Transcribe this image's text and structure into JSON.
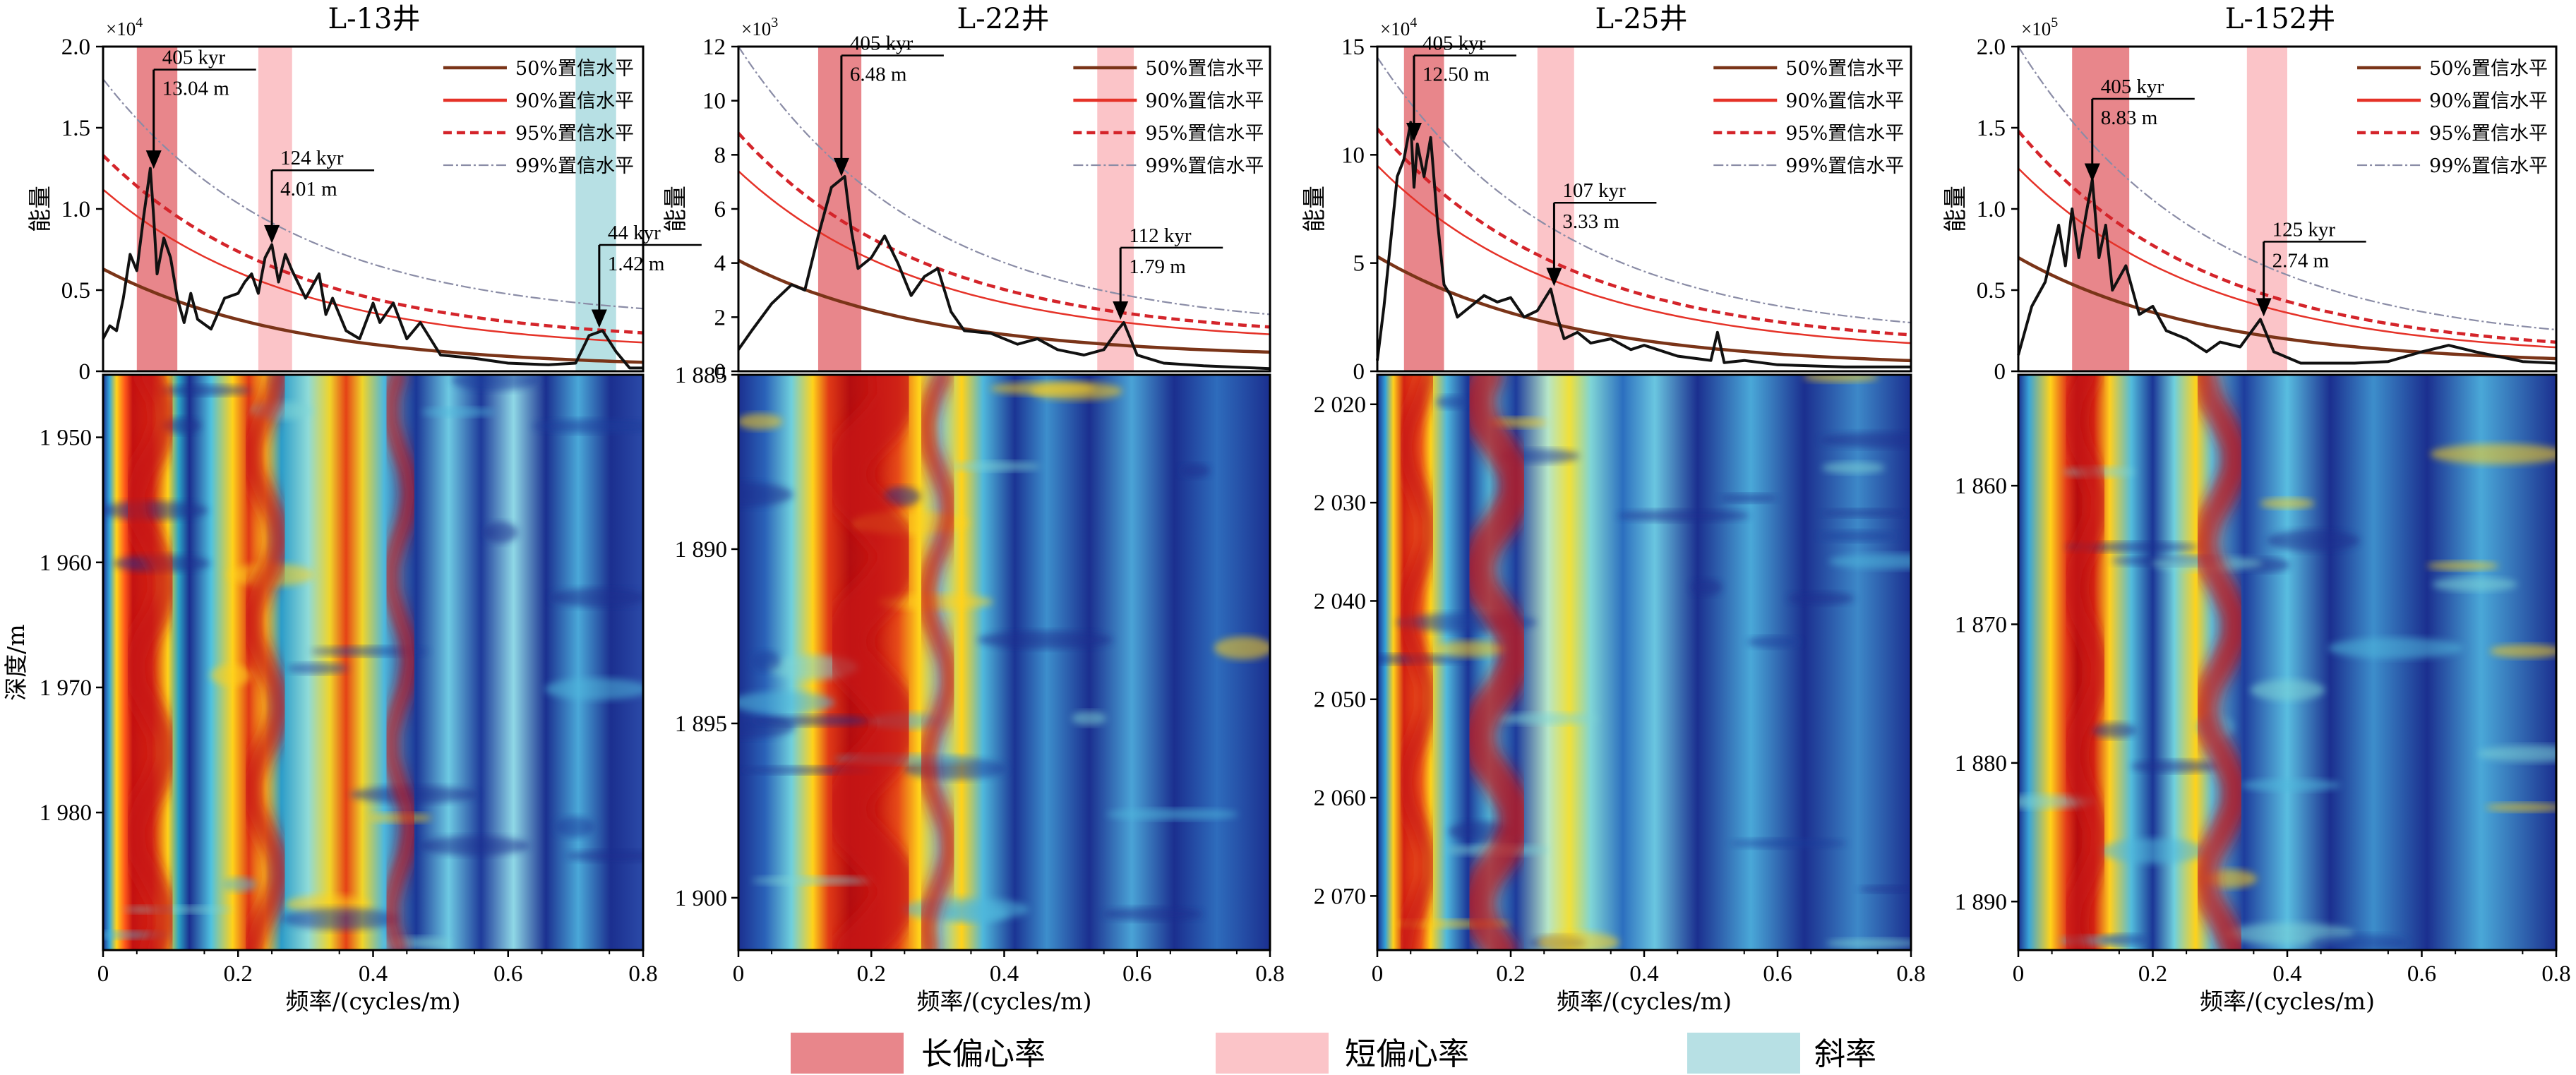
{
  "colors": {
    "long_ecc": "#e8868b",
    "short_ecc": "#fbc4c8",
    "obliquity": "#b7e0e4",
    "c50": "#7a3418",
    "c90": "#e53228",
    "c95": "#d4242a",
    "c99": "#8a8ca6",
    "curve": "#111111"
  },
  "legend_bottom": [
    {
      "label": "长偏心率",
      "color": "#e8868b"
    },
    {
      "label": "短偏心率",
      "color": "#fbc4c8"
    },
    {
      "label": "斜率",
      "color": "#b7e0e4"
    }
  ],
  "chart_data": [
    {
      "type": "spectrum+evolutive_spectrum",
      "title": "L-13井",
      "spectrum": {
        "multiplier": "×10",
        "exponent": "4",
        "ylim": [
          0,
          2.0
        ],
        "yticks": [
          0,
          0.5,
          1.0,
          1.5,
          2.0
        ],
        "ytick_labels": [
          "0",
          "0.5",
          "1.0",
          "1.5",
          "2.0"
        ],
        "ylabel": "能量",
        "bands": [
          {
            "kind": "long_ecc",
            "x": [
              0.05,
              0.11
            ]
          },
          {
            "kind": "short_ecc",
            "x": [
              0.23,
              0.28
            ]
          },
          {
            "kind": "obliquity",
            "x": [
              0.7,
              0.76
            ]
          }
        ],
        "legend": [
          "50%置信水平",
          "90%置信水平",
          "95%置信水平",
          "99%置信水平"
        ],
        "conf": {
          "c50": [
            0.63,
            0.02
          ],
          "c90": [
            1.12,
            0.12
          ],
          "c95": [
            1.33,
            0.17
          ],
          "c99": [
            1.8,
            0.3
          ]
        },
        "curve": [
          [
            0,
            0.2
          ],
          [
            0.01,
            0.28
          ],
          [
            0.02,
            0.25
          ],
          [
            0.03,
            0.45
          ],
          [
            0.04,
            0.72
          ],
          [
            0.05,
            0.62
          ],
          [
            0.06,
            0.95
          ],
          [
            0.07,
            1.25
          ],
          [
            0.075,
            0.95
          ],
          [
            0.08,
            0.6
          ],
          [
            0.09,
            0.82
          ],
          [
            0.1,
            0.7
          ],
          [
            0.11,
            0.45
          ],
          [
            0.12,
            0.3
          ],
          [
            0.13,
            0.48
          ],
          [
            0.14,
            0.32
          ],
          [
            0.16,
            0.26
          ],
          [
            0.18,
            0.45
          ],
          [
            0.2,
            0.48
          ],
          [
            0.21,
            0.55
          ],
          [
            0.22,
            0.6
          ],
          [
            0.23,
            0.48
          ],
          [
            0.24,
            0.7
          ],
          [
            0.25,
            0.78
          ],
          [
            0.26,
            0.55
          ],
          [
            0.27,
            0.72
          ],
          [
            0.28,
            0.62
          ],
          [
            0.3,
            0.45
          ],
          [
            0.32,
            0.6
          ],
          [
            0.33,
            0.35
          ],
          [
            0.34,
            0.45
          ],
          [
            0.36,
            0.25
          ],
          [
            0.38,
            0.2
          ],
          [
            0.4,
            0.42
          ],
          [
            0.41,
            0.3
          ],
          [
            0.43,
            0.42
          ],
          [
            0.45,
            0.2
          ],
          [
            0.47,
            0.3
          ],
          [
            0.5,
            0.1
          ],
          [
            0.55,
            0.08
          ],
          [
            0.6,
            0.05
          ],
          [
            0.66,
            0.04
          ],
          [
            0.7,
            0.05
          ],
          [
            0.72,
            0.22
          ],
          [
            0.74,
            0.25
          ],
          [
            0.76,
            0.12
          ],
          [
            0.78,
            0.02
          ],
          [
            0.8,
            0.02
          ]
        ],
        "annotations": [
          {
            "lines": [
              "405 kyr",
              "13.04 m"
            ],
            "x": 0.075,
            "y": 1.23,
            "ty": 1.78
          },
          {
            "lines": [
              "124 kyr",
              "4.01 m"
            ],
            "x": 0.25,
            "y": 0.77,
            "ty": 1.16
          },
          {
            "lines": [
              "44 kyr",
              "1.42 m"
            ],
            "x": 0.735,
            "y": 0.25,
            "ty": 0.7
          }
        ]
      },
      "evolutive": {
        "xlim": [
          0,
          0.8
        ],
        "xticks": [
          0,
          0.2,
          0.4,
          0.6,
          0.8
        ],
        "xtick_labels": [
          "0",
          "0.2",
          "0.4",
          "0.6",
          "0.8"
        ],
        "xlabel": "频率/(cycles/m)",
        "ylabel": "深度/m",
        "depth_range": [
          1945,
          1991
        ],
        "yticks": [
          1950,
          1960,
          1970,
          1980
        ],
        "ytick_labels": [
          "1 950",
          "1 960",
          "1 970",
          "1 980"
        ],
        "tracks": [
          [
            0.07,
            0.04
          ],
          [
            0.24,
            0.035
          ],
          [
            0.44,
            0.025
          ]
        ]
      }
    },
    {
      "type": "spectrum+evolutive_spectrum",
      "title": "L-22井",
      "spectrum": {
        "multiplier": "×10",
        "exponent": "3",
        "ylim": [
          0,
          12
        ],
        "yticks": [
          0,
          2,
          4,
          6,
          8,
          10,
          12
        ],
        "ytick_labels": [
          "0",
          "2",
          "4",
          "6",
          "8",
          "10",
          "12"
        ],
        "ylabel": "能量",
        "bands": [
          {
            "kind": "long_ecc",
            "x": [
              0.12,
              0.185
            ]
          },
          {
            "kind": "short_ecc",
            "x": [
              0.54,
              0.595
            ]
          }
        ],
        "legend": [
          "50%置信水平",
          "90%置信水平",
          "95%置信水平",
          "99%置信水平"
        ],
        "conf": {
          "c50": [
            4.1,
            0.5
          ],
          "c90": [
            7.4,
            1.0
          ],
          "c95": [
            8.8,
            1.2
          ],
          "c99": [
            12.0,
            1.5
          ]
        },
        "curve": [
          [
            0,
            0.8
          ],
          [
            0.02,
            1.5
          ],
          [
            0.05,
            2.5
          ],
          [
            0.08,
            3.2
          ],
          [
            0.1,
            3.0
          ],
          [
            0.12,
            5.0
          ],
          [
            0.14,
            6.8
          ],
          [
            0.16,
            7.2
          ],
          [
            0.17,
            5.2
          ],
          [
            0.18,
            3.8
          ],
          [
            0.2,
            4.2
          ],
          [
            0.22,
            5.0
          ],
          [
            0.24,
            4.0
          ],
          [
            0.26,
            2.8
          ],
          [
            0.28,
            3.5
          ],
          [
            0.3,
            3.8
          ],
          [
            0.32,
            2.2
          ],
          [
            0.34,
            1.5
          ],
          [
            0.38,
            1.4
          ],
          [
            0.42,
            1.0
          ],
          [
            0.45,
            1.2
          ],
          [
            0.48,
            0.8
          ],
          [
            0.52,
            0.6
          ],
          [
            0.55,
            0.8
          ],
          [
            0.57,
            1.5
          ],
          [
            0.58,
            1.8
          ],
          [
            0.6,
            0.6
          ],
          [
            0.64,
            0.3
          ],
          [
            0.7,
            0.2
          ],
          [
            0.8,
            0.1
          ]
        ],
        "annotations": [
          {
            "lines": [
              "405 kyr",
              "6.48 m"
            ],
            "x": 0.155,
            "y": 7.1,
            "ty": 11.2
          },
          {
            "lines": [
              "112 kyr",
              "1.79 m"
            ],
            "x": 0.575,
            "y": 1.8,
            "ty": 4.1
          }
        ]
      },
      "evolutive": {
        "xlim": [
          0,
          0.8
        ],
        "xticks": [
          0,
          0.2,
          0.4,
          0.6,
          0.8
        ],
        "xtick_labels": [
          "0",
          "0.2",
          "0.4",
          "0.6",
          "0.8"
        ],
        "xlabel": "频率/(cycles/m)",
        "depth_range": [
          1885,
          1901.5
        ],
        "yticks": [
          1885,
          1890,
          1895,
          1900
        ],
        "ytick_labels": [
          "1 885",
          "1 890",
          "1 895",
          "1 900"
        ],
        "tracks": [
          [
            0.2,
            0.07
          ],
          [
            0.3,
            0.03
          ]
        ]
      }
    },
    {
      "type": "spectrum+evolutive_spectrum",
      "title": "L-25井",
      "spectrum": {
        "multiplier": "×10",
        "exponent": "4",
        "ylim": [
          0,
          15
        ],
        "yticks": [
          0,
          5,
          10,
          15
        ],
        "ytick_labels": [
          "0",
          "5",
          "10",
          "15"
        ],
        "ylabel": "能量",
        "bands": [
          {
            "kind": "long_ecc",
            "x": [
              0.04,
              0.1
            ]
          },
          {
            "kind": "short_ecc",
            "x": [
              0.24,
              0.295
            ]
          }
        ],
        "legend": [
          "50%置信水平",
          "90%置信水平",
          "95%置信水平",
          "99%置信水平"
        ],
        "conf": {
          "c50": [
            5.3,
            0.2
          ],
          "c90": [
            9.5,
            0.8
          ],
          "c95": [
            11.2,
            1.1
          ],
          "c99": [
            14.5,
            1.5
          ]
        },
        "curve": [
          [
            0,
            0.5
          ],
          [
            0.01,
            3.0
          ],
          [
            0.02,
            6.0
          ],
          [
            0.03,
            9.0
          ],
          [
            0.04,
            9.8
          ],
          [
            0.05,
            11.5
          ],
          [
            0.055,
            8.5
          ],
          [
            0.06,
            10.5
          ],
          [
            0.07,
            9.0
          ],
          [
            0.08,
            10.8
          ],
          [
            0.09,
            7.0
          ],
          [
            0.1,
            4.0
          ],
          [
            0.11,
            3.5
          ],
          [
            0.12,
            2.5
          ],
          [
            0.14,
            3.0
          ],
          [
            0.16,
            3.5
          ],
          [
            0.18,
            3.2
          ],
          [
            0.2,
            3.4
          ],
          [
            0.22,
            2.5
          ],
          [
            0.24,
            2.8
          ],
          [
            0.26,
            3.8
          ],
          [
            0.27,
            2.5
          ],
          [
            0.28,
            1.5
          ],
          [
            0.3,
            1.8
          ],
          [
            0.32,
            1.3
          ],
          [
            0.35,
            1.5
          ],
          [
            0.38,
            1.0
          ],
          [
            0.4,
            1.2
          ],
          [
            0.45,
            0.7
          ],
          [
            0.5,
            0.5
          ],
          [
            0.51,
            1.8
          ],
          [
            0.52,
            0.4
          ],
          [
            0.55,
            0.5
          ],
          [
            0.6,
            0.3
          ],
          [
            0.7,
            0.2
          ],
          [
            0.8,
            0.2
          ]
        ],
        "annotations": [
          {
            "lines": [
              "405 kyr",
              "12.50 m"
            ],
            "x": 0.055,
            "y": 10.5,
            "ty": 14.0
          },
          {
            "lines": [
              "107 kyr",
              "3.33 m"
            ],
            "x": 0.265,
            "y": 3.8,
            "ty": 7.2
          }
        ]
      },
      "evolutive": {
        "xlim": [
          0,
          0.8
        ],
        "xticks": [
          0,
          0.2,
          0.4,
          0.6,
          0.8
        ],
        "xtick_labels": [
          "0",
          "0.2",
          "0.4",
          "0.6",
          "0.8"
        ],
        "xlabel": "频率/(cycles/m)",
        "depth_range": [
          2017,
          2075.5
        ],
        "yticks": [
          2020,
          2030,
          2040,
          2050,
          2060,
          2070
        ],
        "ytick_labels": [
          "2 020",
          "2 030",
          "2 040",
          "2 050",
          "2 060",
          "2 070"
        ],
        "tracks": [
          [
            0.06,
            0.03
          ],
          [
            0.18,
            0.05
          ]
        ]
      }
    },
    {
      "type": "spectrum+evolutive_spectrum",
      "title": "L-152井",
      "spectrum": {
        "multiplier": "×10",
        "exponent": "5",
        "ylim": [
          0,
          2.0
        ],
        "yticks": [
          0,
          0.5,
          1.0,
          1.5,
          2.0
        ],
        "ytick_labels": [
          "0",
          "0.5",
          "1.0",
          "1.5",
          "2.0"
        ],
        "ylabel": "能量",
        "bands": [
          {
            "kind": "long_ecc",
            "x": [
              0.08,
              0.165
            ]
          },
          {
            "kind": "short_ecc",
            "x": [
              0.34,
              0.4
            ]
          }
        ],
        "legend": [
          "50%置信水平",
          "90%置信水平",
          "95%置信水平",
          "99%置信水平"
        ],
        "conf": {
          "c50": [
            0.7,
            0.04
          ],
          "c90": [
            1.25,
            0.08
          ],
          "c95": [
            1.48,
            0.1
          ],
          "c99": [
            2.0,
            0.15
          ]
        },
        "curve": [
          [
            0,
            0.1
          ],
          [
            0.02,
            0.4
          ],
          [
            0.04,
            0.55
          ],
          [
            0.06,
            0.9
          ],
          [
            0.07,
            0.65
          ],
          [
            0.08,
            1.0
          ],
          [
            0.09,
            0.7
          ],
          [
            0.1,
            0.95
          ],
          [
            0.11,
            1.18
          ],
          [
            0.12,
            0.7
          ],
          [
            0.13,
            0.9
          ],
          [
            0.14,
            0.5
          ],
          [
            0.16,
            0.65
          ],
          [
            0.18,
            0.35
          ],
          [
            0.2,
            0.4
          ],
          [
            0.22,
            0.25
          ],
          [
            0.25,
            0.2
          ],
          [
            0.28,
            0.12
          ],
          [
            0.3,
            0.18
          ],
          [
            0.33,
            0.15
          ],
          [
            0.36,
            0.32
          ],
          [
            0.38,
            0.12
          ],
          [
            0.42,
            0.05
          ],
          [
            0.5,
            0.05
          ],
          [
            0.55,
            0.06
          ],
          [
            0.6,
            0.12
          ],
          [
            0.64,
            0.16
          ],
          [
            0.68,
            0.12
          ],
          [
            0.75,
            0.06
          ],
          [
            0.8,
            0.05
          ]
        ],
        "annotations": [
          {
            "lines": [
              "405 kyr",
              "8.83 m"
            ],
            "x": 0.11,
            "y": 1.15,
            "ty": 1.6
          },
          {
            "lines": [
              "125 kyr",
              "2.74 m"
            ],
            "x": 0.365,
            "y": 0.32,
            "ty": 0.72
          }
        ]
      },
      "evolutive": {
        "xlim": [
          0,
          0.8
        ],
        "xticks": [
          0,
          0.2,
          0.4,
          0.6,
          0.8
        ],
        "xtick_labels": [
          "0",
          "0.2",
          "0.4",
          "0.6",
          "0.8"
        ],
        "xlabel": "频率/(cycles/m)",
        "depth_range": [
          1852,
          1893.5
        ],
        "yticks": [
          1860,
          1870,
          1880,
          1890
        ],
        "ytick_labels": [
          "1 860",
          "1 870",
          "1 880",
          "1 890"
        ],
        "tracks": [
          [
            0.1,
            0.035
          ],
          [
            0.3,
            0.04
          ]
        ]
      }
    }
  ]
}
